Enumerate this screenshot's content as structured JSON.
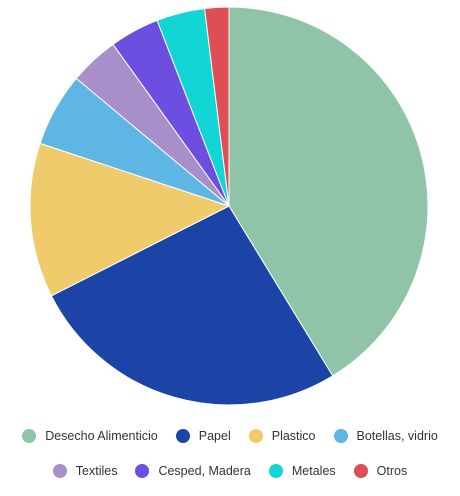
{
  "chart_data": {
    "type": "pie",
    "title": "",
    "legend_position": "bottom",
    "slices": [
      {
        "label": "Desecho Alimenticio",
        "value": 42.1,
        "color": "#8fc4a8"
      },
      {
        "label": "Papel",
        "value": 26.8,
        "color": "#1c44a6"
      },
      {
        "label": "Plastico",
        "value": 12.8,
        "color": "#efcb6b"
      },
      {
        "label": "Botellas, vidrio",
        "value": 6.1,
        "color": "#5eb6e4"
      },
      {
        "label": "Textiles",
        "value": 4.1,
        "color": "#a98fc9"
      },
      {
        "label": "Cesped, Madera",
        "value": 4.1,
        "color": "#6c4fe0"
      },
      {
        "label": "Metales",
        "value": 4.0,
        "color": "#12d6d6"
      },
      {
        "label": "Otros",
        "value": 2.0,
        "color": "#dd4f55"
      }
    ]
  }
}
